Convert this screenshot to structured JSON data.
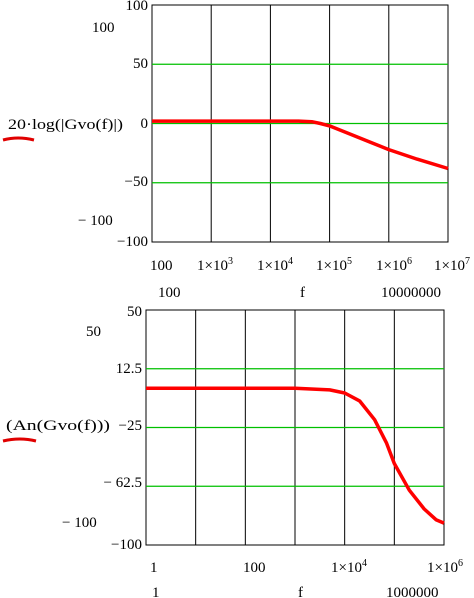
{
  "chart_data": [
    {
      "type": "line",
      "xscale": "log",
      "xlim": [
        100,
        10000000
      ],
      "ylim": [
        -100,
        100
      ],
      "ylabel": "20·log(|Gvo(f)|)",
      "xlabel": "f",
      "y_ticks_axis": [
        "100",
        "50",
        "0",
        "−50",
        "−100"
      ],
      "y_outer_labels": [
        "100",
        "− 100"
      ],
      "x_ticks": [
        {
          "base": "100",
          "exp": ""
        },
        {
          "base": "1×10",
          "exp": "3"
        },
        {
          "base": "1×10",
          "exp": "4"
        },
        {
          "base": "1×10",
          "exp": "5"
        },
        {
          "base": "1×10",
          "exp": "6"
        },
        {
          "base": "1×10",
          "exp": "7"
        }
      ],
      "x_outer_labels": [
        "100",
        "10000000"
      ],
      "grid_y": [
        50,
        0,
        -50
      ],
      "grid_color": "#00c000",
      "series": [
        {
          "color": "#ff0000",
          "x": [
            100,
            1000,
            10000,
            30000,
            50000,
            70000,
            100000,
            200000,
            500000,
            1000000,
            3000000,
            10000000
          ],
          "y": [
            2,
            2,
            2,
            2,
            1.5,
            0,
            -2,
            -8,
            -16,
            -22,
            -30,
            -38
          ]
        }
      ]
    },
    {
      "type": "line",
      "xscale": "log",
      "xlim": [
        1,
        1000000
      ],
      "ylim": [
        -100,
        50
      ],
      "ylabel": "(An(Gvo(f)))",
      "xlabel": "f",
      "y_ticks_axis": [
        "50",
        "12.5",
        "−25",
        "− 62.5",
        "−100"
      ],
      "y_outer_labels": [
        "50",
        "− 100"
      ],
      "x_ticks": [
        {
          "base": "1",
          "exp": ""
        },
        {
          "base": "100",
          "exp": ""
        },
        {
          "base": "1×10",
          "exp": "4"
        },
        {
          "base": "1×10",
          "exp": "6"
        }
      ],
      "x_outer_labels": [
        "1",
        "1000000"
      ],
      "grid_y": [
        12.5,
        -25,
        -62.5
      ],
      "grid_color": "#00c000",
      "series": [
        {
          "color": "#ff0000",
          "x": [
            1,
            10,
            100,
            1000,
            5000,
            10000,
            20000,
            40000,
            70000,
            100000,
            200000,
            400000,
            700000,
            1000000
          ],
          "y": [
            0,
            0,
            0,
            0,
            -1,
            -3,
            -8,
            -20,
            -35,
            -48,
            -65,
            -77,
            -84,
            -86
          ]
        }
      ]
    }
  ]
}
